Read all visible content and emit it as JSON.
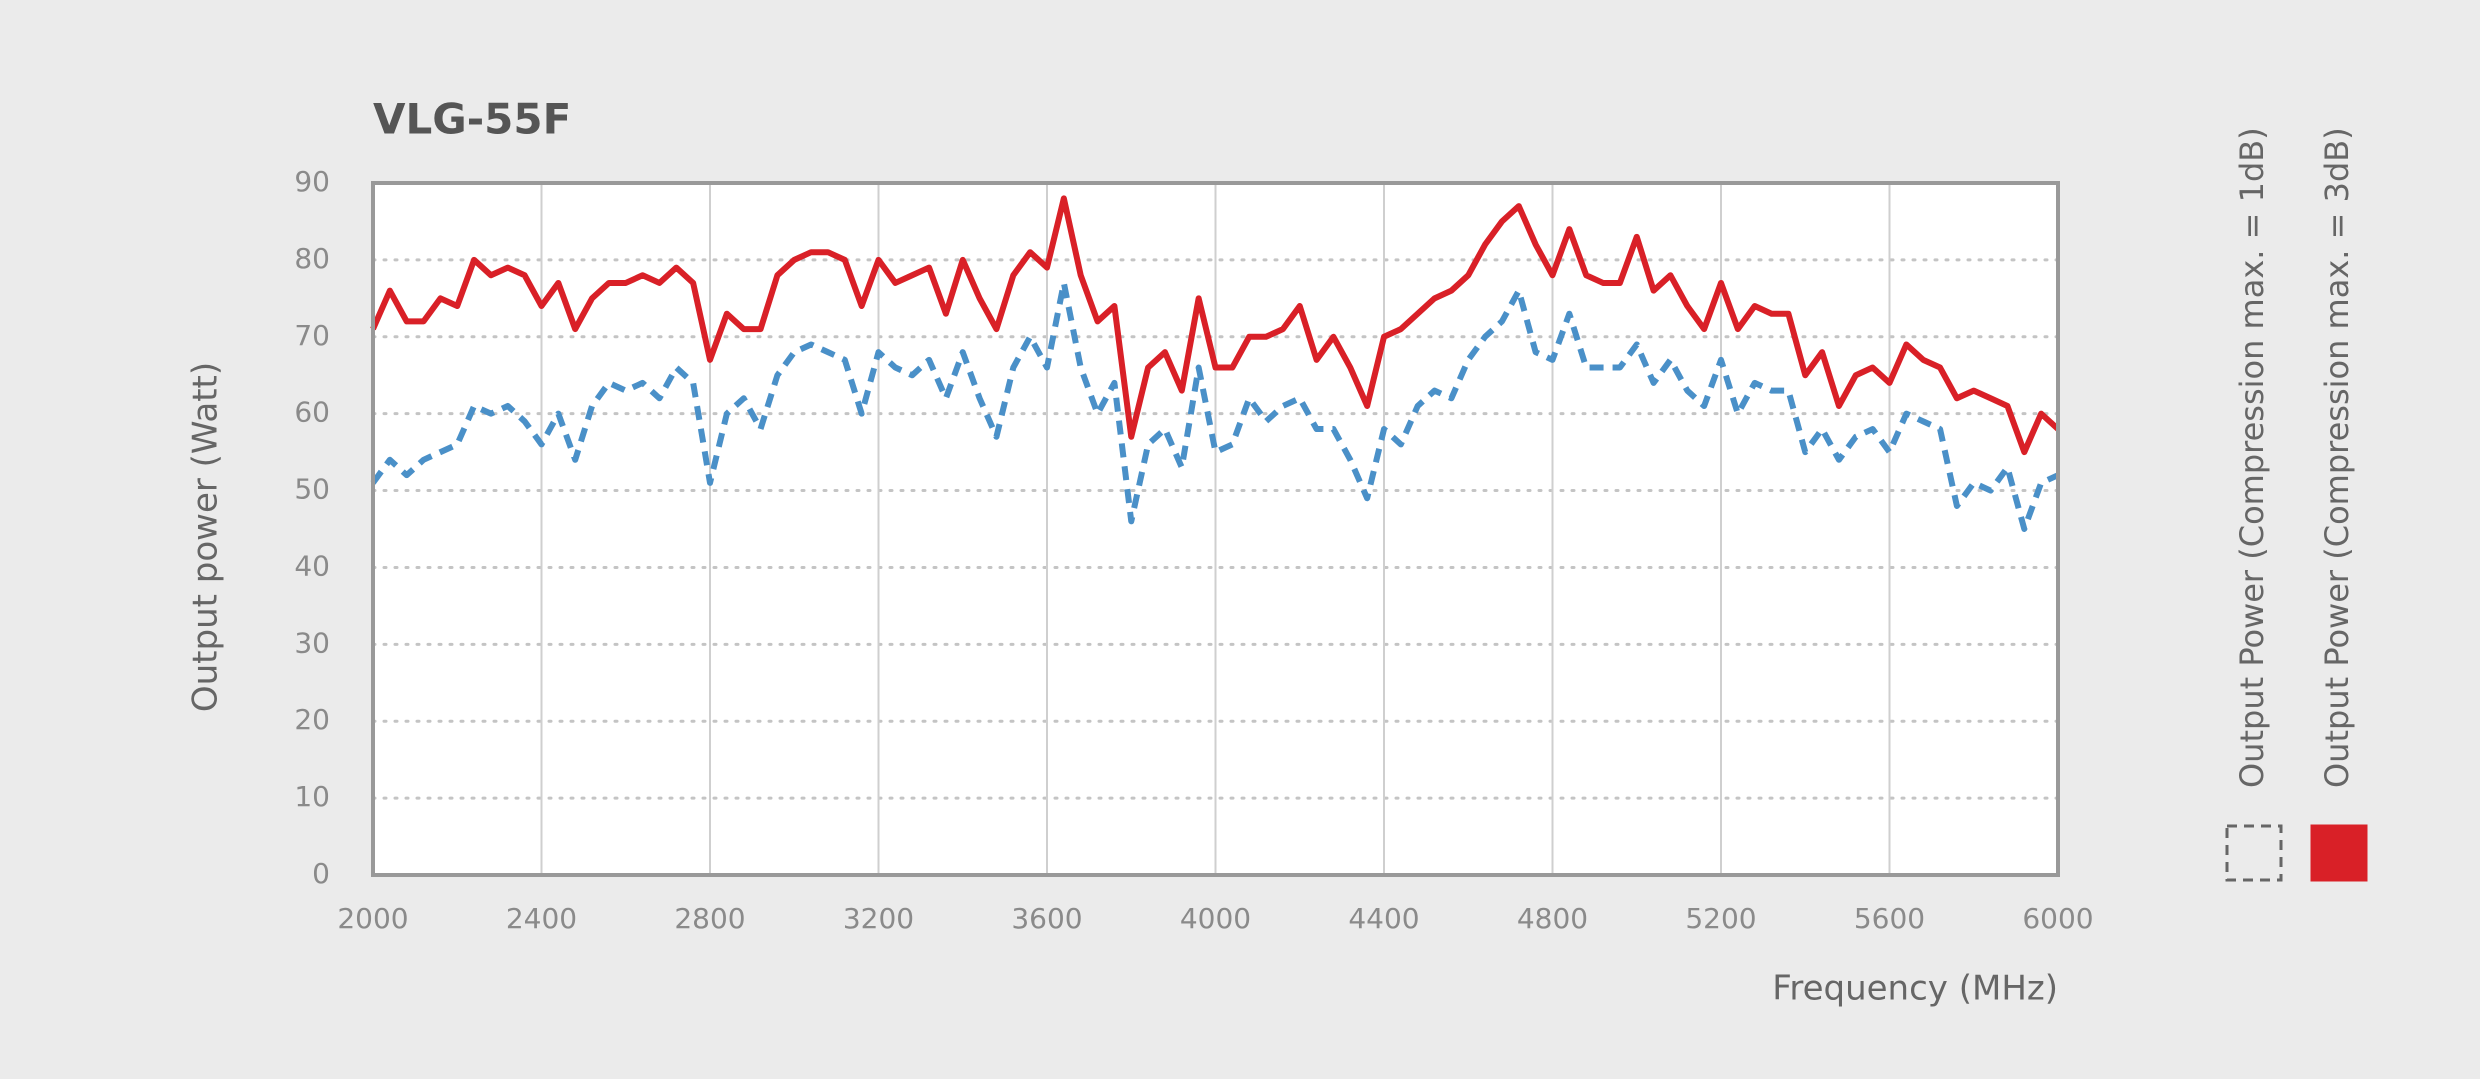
{
  "chart_data": {
    "type": "line",
    "title": "VLG-55F",
    "x_label": "Frequency (MHz)",
    "y_label": "Output power (Watt)",
    "x": [
      2000,
      2040,
      2080,
      2120,
      2160,
      2200,
      2240,
      2280,
      2320,
      2360,
      2400,
      2440,
      2480,
      2520,
      2560,
      2600,
      2640,
      2680,
      2720,
      2760,
      2800,
      2840,
      2880,
      2920,
      2960,
      3000,
      3040,
      3080,
      3120,
      3160,
      3200,
      3240,
      3280,
      3320,
      3360,
      3400,
      3440,
      3480,
      3520,
      3560,
      3600,
      3640,
      3680,
      3720,
      3760,
      3800,
      3840,
      3880,
      3920,
      3960,
      4000,
      4040,
      4080,
      4120,
      4160,
      4200,
      4240,
      4280,
      4320,
      4360,
      4400,
      4440,
      4480,
      4520,
      4560,
      4600,
      4640,
      4680,
      4720,
      4760,
      4800,
      4840,
      4880,
      4920,
      4960,
      5000,
      5040,
      5080,
      5120,
      5160,
      5200,
      5240,
      5280,
      5320,
      5360,
      5400,
      5440,
      5480,
      5520,
      5560,
      5600,
      5640,
      5680,
      5720,
      5760,
      5800,
      5840,
      5880,
      5920,
      5960,
      6000
    ],
    "series": [
      {
        "name": "Output Power (Compression max. = 1dB)",
        "color": "#4a90c8",
        "dashed": true,
        "values": [
          51,
          54,
          52,
          54,
          55,
          56,
          61,
          60,
          61,
          59,
          56,
          60,
          54,
          61,
          64,
          63,
          64,
          62,
          66,
          64,
          51,
          60,
          62,
          58,
          65,
          68,
          69,
          68,
          67,
          60,
          68,
          66,
          65,
          67,
          62,
          68,
          62,
          57,
          66,
          70,
          66,
          77,
          66,
          60,
          64,
          46,
          56,
          58,
          53,
          66,
          55,
          56,
          62,
          59,
          61,
          62,
          58,
          58,
          54,
          49,
          58,
          56,
          61,
          63,
          62,
          67,
          70,
          72,
          76,
          68,
          67,
          73,
          66,
          66,
          66,
          69,
          64,
          67,
          63,
          61,
          67,
          60,
          64,
          63,
          63,
          55,
          58,
          54,
          57,
          58,
          55,
          60,
          59,
          58,
          48,
          51,
          50,
          53,
          45,
          51,
          52
        ]
      },
      {
        "name": "Output Power (Compression max. = 3dB)",
        "color": "#d92027",
        "dashed": false,
        "values": [
          71,
          76,
          72,
          72,
          75,
          74,
          80,
          78,
          79,
          78,
          74,
          77,
          71,
          75,
          77,
          77,
          78,
          77,
          79,
          77,
          67,
          73,
          71,
          71,
          78,
          80,
          81,
          81,
          80,
          74,
          80,
          77,
          78,
          79,
          73,
          80,
          75,
          71,
          78,
          81,
          79,
          88,
          78,
          72,
          74,
          57,
          66,
          68,
          63,
          75,
          66,
          66,
          70,
          70,
          71,
          74,
          67,
          70,
          66,
          61,
          70,
          71,
          73,
          75,
          76,
          78,
          82,
          85,
          87,
          82,
          78,
          84,
          78,
          77,
          77,
          83,
          76,
          78,
          74,
          71,
          77,
          71,
          74,
          73,
          73,
          65,
          68,
          61,
          65,
          66,
          64,
          69,
          67,
          66,
          62,
          63,
          62,
          61,
          55,
          60,
          58
        ]
      }
    ],
    "xlim": [
      2000,
      6000
    ],
    "xticks": [
      2000,
      2400,
      2800,
      3200,
      3600,
      4000,
      4400,
      4800,
      5200,
      5600,
      6000
    ],
    "ylim": [
      0,
      90
    ],
    "yticks": [
      0,
      10,
      20,
      30,
      40,
      50,
      60,
      70,
      80,
      90
    ],
    "grid": true
  }
}
